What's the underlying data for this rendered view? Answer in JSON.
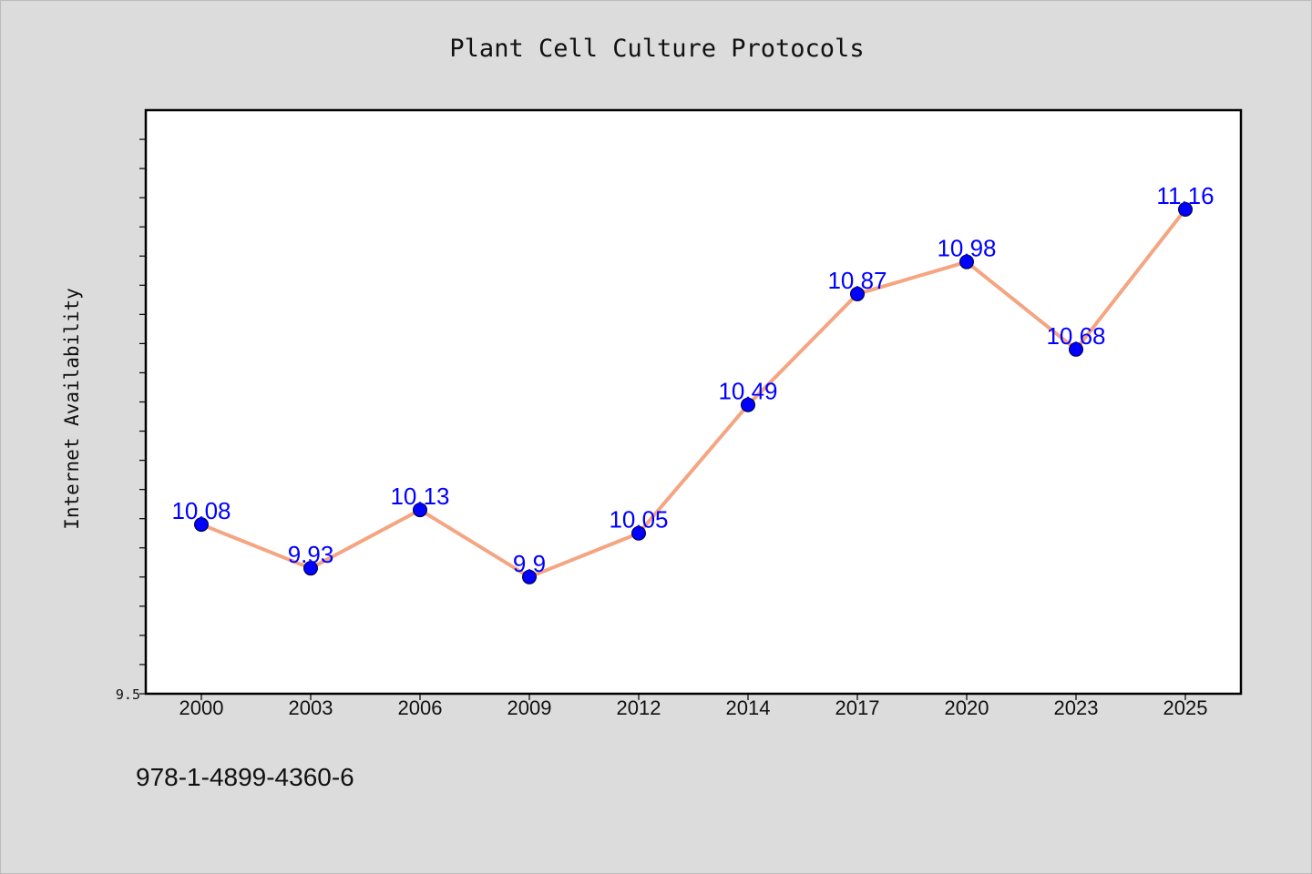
{
  "chart_data": {
    "type": "line",
    "title": "Plant Cell Culture Protocols",
    "xlabel": "",
    "ylabel": "Internet Availability",
    "categories": [
      "2000",
      "2003",
      "2006",
      "2009",
      "2012",
      "2014",
      "2017",
      "2020",
      "2023",
      "2025"
    ],
    "series": [
      {
        "values": [
          10.08,
          9.93,
          10.13,
          9.9,
          10.05,
          10.49,
          10.87,
          10.98,
          10.68,
          11.16
        ]
      }
    ],
    "data_labels": [
      "10.08",
      "9.93",
      "10.13",
      "9.9",
      "10.05",
      "10.49",
      "10.87",
      "10.98",
      "10.68",
      "11.16"
    ],
    "ylim": [
      9.5,
      11.5
    ],
    "y_tick_label": "9.5",
    "y_minor_step": 0.1,
    "grid": false,
    "legend": "none",
    "colors": {
      "line": "#f4a582",
      "marker": "#0000ff",
      "label": "#0000ff",
      "background": "#dcdcdc",
      "plot_background": "#ffffff"
    }
  },
  "footnote": "978-1-4899-4360-6"
}
